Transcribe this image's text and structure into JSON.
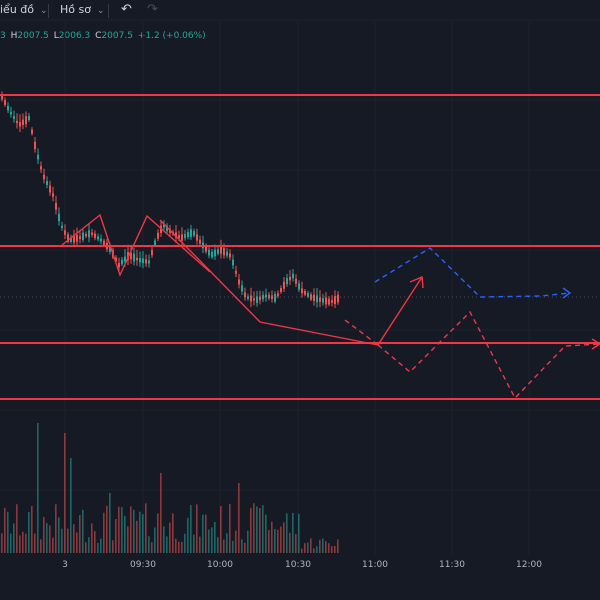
{
  "toolbar": {
    "chart_menu_label": "iểu đồ",
    "profile_menu_label": "Hồ sơ"
  },
  "ohlc": {
    "open_value": "3",
    "high_label": "H",
    "high_value": "2007.5",
    "low_label": "L",
    "low_value": "2006.3",
    "close_label": "C",
    "close_value": "2007.5",
    "change": "+1.2 (+0.06%)"
  },
  "colors": {
    "background": "#161a25",
    "up": "#26a69a",
    "down": "#ef5350",
    "level_line": "#f23645",
    "projection_blue": "#2962ff",
    "projection_red": "#f23645",
    "axis_text": "#b2b5be"
  },
  "chart_data": {
    "type": "candlestick",
    "x_axis_labels": [
      "3",
      "09:30",
      "10:00",
      "10:30",
      "11:00",
      "11:30",
      "12:00"
    ],
    "horizontal_levels_count": 4,
    "annotations": [
      "zigzag pattern",
      "breakout arrow",
      "blue dashed projection",
      "red dashed projection"
    ]
  }
}
